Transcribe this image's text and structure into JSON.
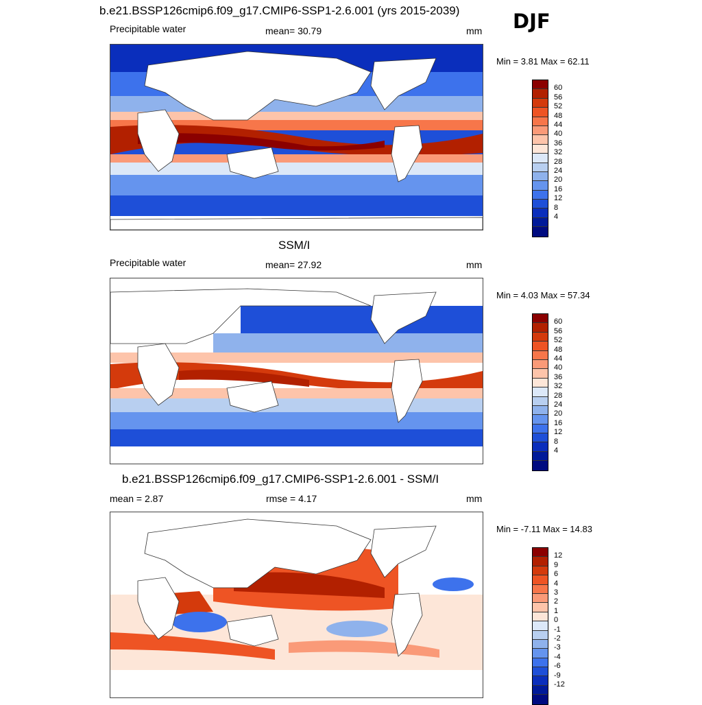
{
  "header": {
    "title_top": "b.e21.BSSP126cmip6.f09_g17.CMIP6-SSP1-2.6.001 (yrs 2015-2039)",
    "season": "DJF",
    "title_mid": "SSM/I",
    "title_bot": "b.e21.BSSP126cmip6.f09_g17.CMIP6-SSP1-2.6.001 - SSM/I"
  },
  "panels": [
    {
      "left_label": "Precipitable water",
      "center_label": "mean=  30.79",
      "units": "mm",
      "minmax": "Min =   3.81 Max =  62.11",
      "ticks": [
        "60",
        "56",
        "52",
        "48",
        "44",
        "40",
        "36",
        "32",
        "28",
        "24",
        "20",
        "16",
        "12",
        "8",
        "4"
      ],
      "colors": [
        "#8b0000",
        "#b22000",
        "#d43a0c",
        "#ee5424",
        "#f7764a",
        "#fa9a78",
        "#fdc4aa",
        "#fde6d8",
        "#dce8f8",
        "#b8cff0",
        "#8fb2ec",
        "#6594ee",
        "#3d72ec",
        "#1e4fd8",
        "#0a2ebc",
        "#001a99",
        "#000b80"
      ]
    },
    {
      "left_label": "Precipitable water",
      "center_label": "mean=  27.92",
      "units": "mm",
      "minmax": "Min =   4.03 Max =  57.34",
      "ticks": [
        "60",
        "56",
        "52",
        "48",
        "44",
        "40",
        "36",
        "32",
        "28",
        "24",
        "20",
        "16",
        "12",
        "8",
        "4"
      ],
      "colors": [
        "#8b0000",
        "#b22000",
        "#d43a0c",
        "#ee5424",
        "#f7764a",
        "#fa9a78",
        "#fdc4aa",
        "#fde6d8",
        "#dce8f8",
        "#b8cff0",
        "#8fb2ec",
        "#6594ee",
        "#3d72ec",
        "#1e4fd8",
        "#0a2ebc",
        "#001a99",
        "#000b80"
      ]
    },
    {
      "left_label": "mean =   2.87",
      "center_label": "rmse =   4.17",
      "units": "mm",
      "minmax": "Min =  -7.11 Max =  14.83",
      "ticks": [
        "12",
        "9",
        "6",
        "4",
        "3",
        "2",
        "1",
        "0",
        "-1",
        "-2",
        "-3",
        "-4",
        "-6",
        "-9",
        "-12"
      ],
      "colors": [
        "#8b0000",
        "#b22000",
        "#d43a0c",
        "#ee5424",
        "#f7764a",
        "#fa9a78",
        "#fdc4aa",
        "#fde6d8",
        "#dce8f8",
        "#b8cff0",
        "#8fb2ec",
        "#6594ee",
        "#3d72ec",
        "#1e4fd8",
        "#0a2ebc",
        "#001a99",
        "#000b80"
      ]
    }
  ]
}
